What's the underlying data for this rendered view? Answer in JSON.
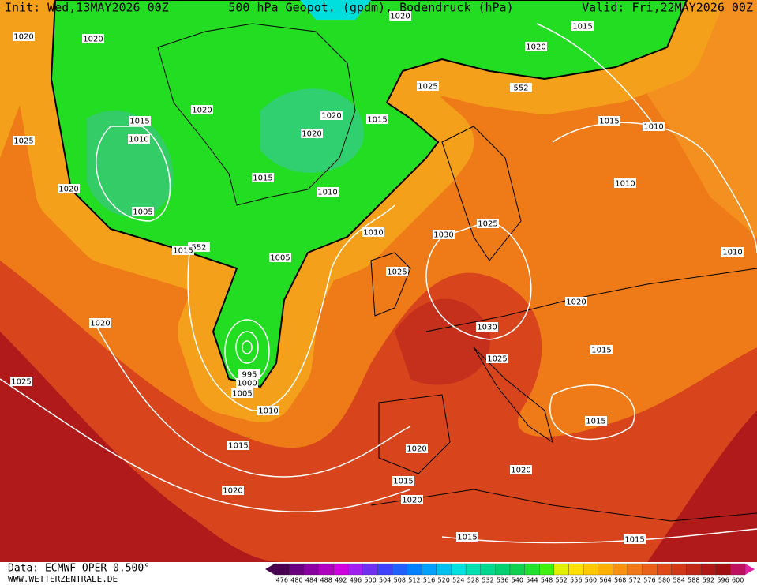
{
  "header": {
    "init": "Init: Wed,13MAY2026 00Z",
    "title": "500 hPa Geopot. (gpdm), Bodendruck (hPa)",
    "valid": "Valid: Fri,22MAY2026 00Z"
  },
  "footer": {
    "source": "Data: ECMWF OPER 0.500°",
    "website": "WWW.WETTERZENTRALE.DE"
  },
  "color_scale": {
    "labels": [
      476,
      480,
      484,
      488,
      492,
      496,
      500,
      504,
      508,
      512,
      516,
      520,
      524,
      528,
      532,
      536,
      540,
      544,
      548,
      552,
      556,
      560,
      564,
      568,
      572,
      576,
      580,
      584,
      588,
      592,
      596,
      600
    ],
    "colors": [
      "#4a0050",
      "#6a0080",
      "#8a00a0",
      "#b000c0",
      "#d000e0",
      "#a020f0",
      "#7030f0",
      "#4040ff",
      "#2060ff",
      "#0080ff",
      "#00a0ff",
      "#00c0f0",
      "#00e0e0",
      "#00e0b0",
      "#00d890",
      "#00d070",
      "#10d050",
      "#20e030",
      "#40f010",
      "#e0f000",
      "#ffe000",
      "#ffc800",
      "#ffb000",
      "#f89010",
      "#f07818",
      "#e86018",
      "#e04818",
      "#d03818",
      "#c02818",
      "#b01818",
      "#a01010",
      "#c01060"
    ]
  },
  "isobar_labels": [
    1020,
    1020,
    1020,
    1015,
    1020,
    1025,
    552,
    1020,
    1015,
    1020,
    1015,
    1015,
    1010,
    1010,
    1020,
    1025,
    1015,
    1010,
    1020,
    1010,
    1005,
    1025,
    1010,
    1030,
    552,
    1015,
    1010,
    1005,
    1025,
    1020,
    1020,
    1030,
    1015,
    1025,
    995,
    1000,
    1005,
    1010,
    1025,
    1015,
    1015,
    1020,
    1020,
    1015,
    1020,
    1020,
    1015,
    1015
  ]
}
